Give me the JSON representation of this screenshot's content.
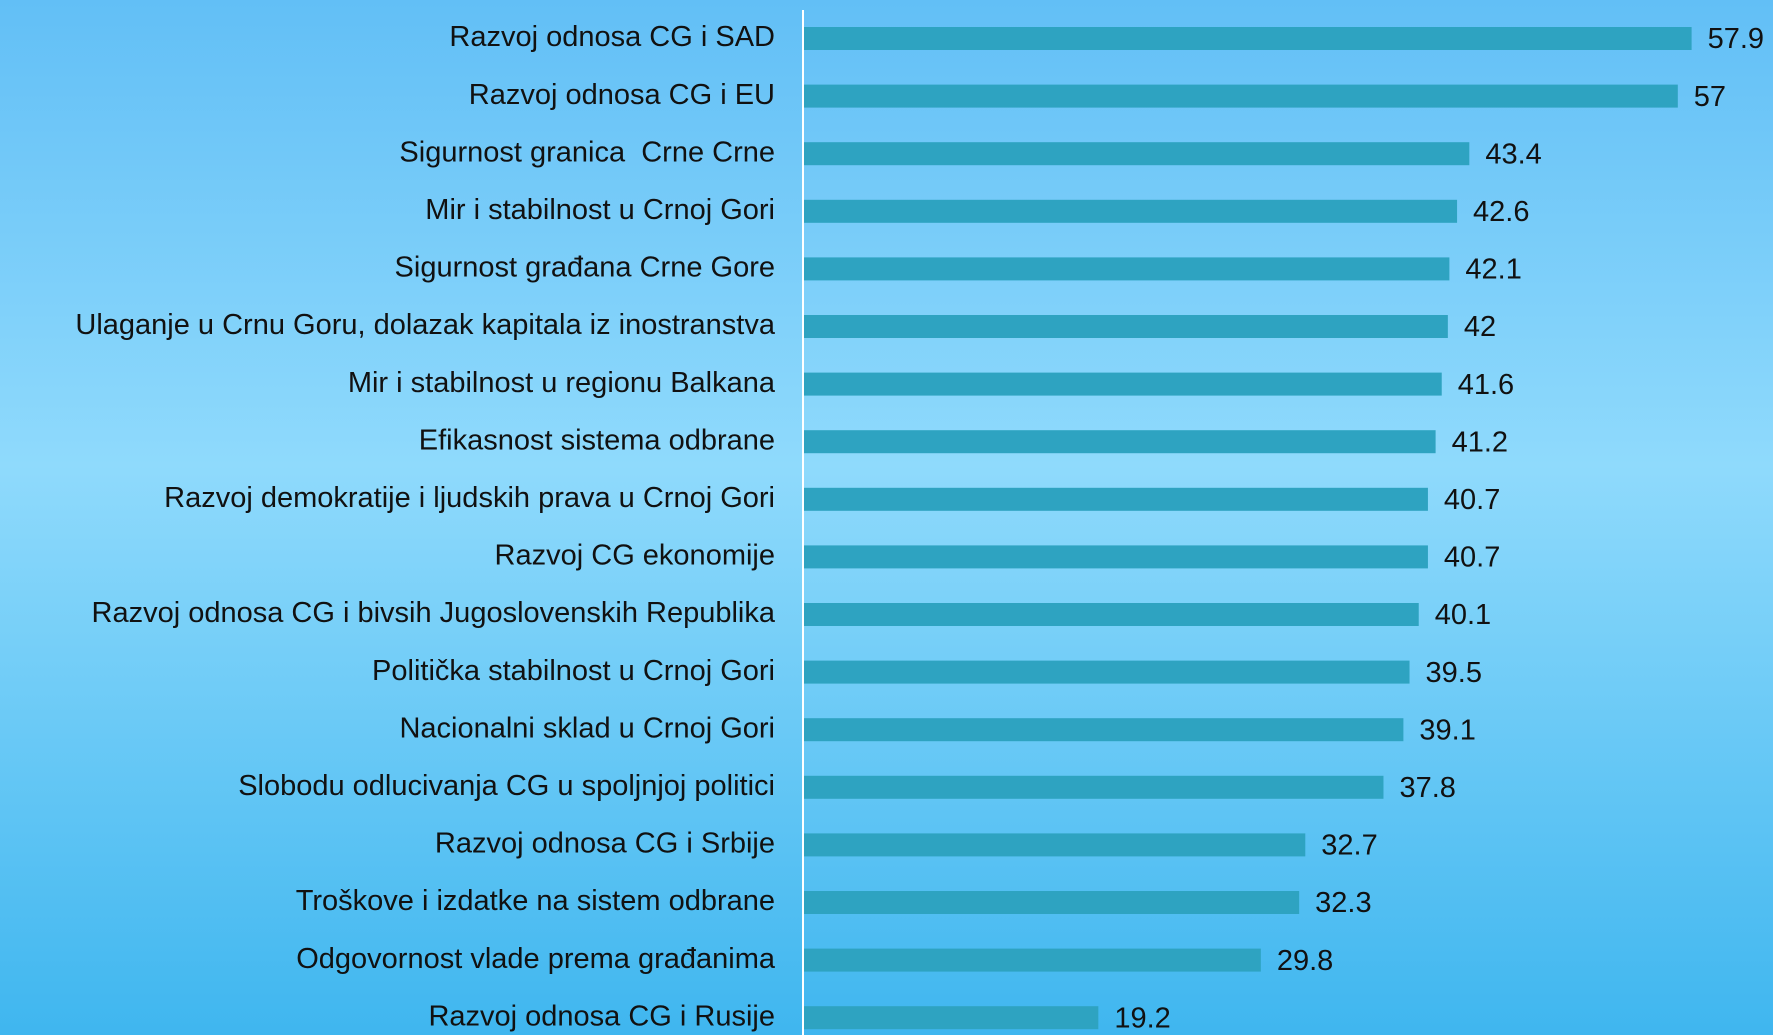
{
  "chart_data": {
    "type": "bar",
    "orientation": "horizontal",
    "categories": [
      "Razvoj odnosa CG i SAD",
      "Razvoj odnosa CG i EU",
      "Sigurnost granica  Crne Crne",
      "Mir i stabilnost u Crnoj Gori",
      "Sigurnost građana Crne Gore",
      "Ulaganje u Crnu Goru, dolazak kapitala iz inostranstva",
      "Mir i stabilnost u regionu Balkana",
      "Efikasnost sistema odbrane",
      "Razvoj demokratije i ljudskih prava u Crnoj Gori",
      "Razvoj CG ekonomije",
      "Razvoj odnosa CG i bivsih Jugoslovenskih Republika",
      "Politička stabilnost u Crnoj Gori",
      "Nacionalni sklad u Crnoj Gori",
      "Slobodu odlucivanja CG u spoljnjoj politici",
      "Razvoj odnosa CG i Srbije",
      "Troškove i izdatke na sistem odbrane",
      "Odgovornost vlade prema građanima",
      "Razvoj odnosa CG i Rusije"
    ],
    "values": [
      57.9,
      57,
      43.4,
      42.6,
      42.1,
      42,
      41.6,
      41.2,
      40.7,
      40.7,
      40.1,
      39.5,
      39.1,
      37.8,
      32.7,
      32.3,
      29.8,
      19.2
    ],
    "color": "#2ea3c1"
  }
}
